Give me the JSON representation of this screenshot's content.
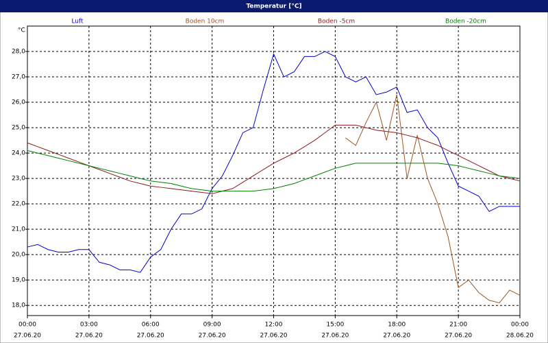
{
  "chart_data": {
    "type": "line",
    "title": "Temperatur [°C]",
    "y_label": "°C",
    "x": [
      0,
      0.5,
      1,
      1.5,
      2,
      2.5,
      3,
      3.5,
      4,
      4.5,
      5,
      5.5,
      6,
      6.5,
      7,
      7.5,
      8,
      8.5,
      9,
      9.5,
      10,
      10.5,
      11,
      11.5,
      12,
      12.5,
      13,
      13.5,
      14,
      14.5,
      15,
      15.5,
      16,
      16.5,
      17,
      17.5,
      18,
      18.5,
      19,
      19.5,
      20,
      20.5,
      21,
      21.5,
      22,
      22.5,
      23,
      23.5,
      24
    ],
    "series": [
      {
        "name": "Luft",
        "color": "#0000cc",
        "values": [
          20.3,
          20.4,
          20.2,
          20.1,
          20.1,
          20.2,
          20.2,
          19.7,
          19.6,
          19.4,
          19.4,
          19.3,
          19.9,
          20.2,
          21.0,
          21.6,
          21.6,
          21.8,
          22.6,
          23.1,
          23.9,
          24.8,
          25.0,
          26.5,
          27.9,
          27.0,
          27.2,
          27.8,
          27.8,
          28.0,
          27.8,
          27.0,
          26.8,
          27.0,
          26.3,
          26.4,
          26.6,
          25.6,
          25.7,
          25.0,
          24.6,
          23.6,
          22.7,
          22.5,
          22.3,
          21.7,
          21.9,
          21.9,
          21.9
        ]
      },
      {
        "name": "Boden 10cm",
        "color": "#a0521e",
        "values": [
          null,
          null,
          null,
          null,
          null,
          null,
          null,
          null,
          null,
          null,
          null,
          null,
          null,
          null,
          null,
          null,
          null,
          null,
          null,
          null,
          null,
          null,
          null,
          null,
          null,
          null,
          null,
          null,
          null,
          null,
          null,
          24.6,
          24.3,
          25.2,
          26.0,
          24.5,
          26.3,
          23.0,
          24.7,
          23.0,
          22.0,
          20.7,
          18.7,
          19.0,
          18.5,
          18.2,
          18.1,
          18.6,
          18.4
        ]
      },
      {
        "name": "Boden -5cm",
        "color": "#8b1a1a",
        "values": [
          24.4,
          24.25,
          24.1,
          23.95,
          23.8,
          23.65,
          23.5,
          23.35,
          23.2,
          23.05,
          22.9,
          22.8,
          22.7,
          22.65,
          22.6,
          22.55,
          22.5,
          22.45,
          22.4,
          22.5,
          22.6,
          22.85,
          23.1,
          23.35,
          23.6,
          23.8,
          24.0,
          24.25,
          24.5,
          24.8,
          25.1,
          25.1,
          25.1,
          25.0,
          24.9,
          24.85,
          24.8,
          24.7,
          24.6,
          24.45,
          24.3,
          24.1,
          23.9,
          23.7,
          23.5,
          23.3,
          23.1,
          23.0,
          22.9
        ]
      },
      {
        "name": "Boden -20cm",
        "color": "#008000",
        "values": [
          24.1,
          24.0,
          23.9,
          23.8,
          23.7,
          23.6,
          23.5,
          23.4,
          23.3,
          23.2,
          23.1,
          23.0,
          22.9,
          22.85,
          22.8,
          22.7,
          22.6,
          22.55,
          22.5,
          22.5,
          22.5,
          22.5,
          22.5,
          22.55,
          22.6,
          22.7,
          22.8,
          22.95,
          23.1,
          23.25,
          23.4,
          23.5,
          23.6,
          23.6,
          23.6,
          23.6,
          23.6,
          23.6,
          23.6,
          23.6,
          23.6,
          23.55,
          23.5,
          23.4,
          23.3,
          23.2,
          23.1,
          23.05,
          23.0
        ]
      }
    ],
    "xlim": [
      0,
      24
    ],
    "ylim": [
      17.6,
      29.0
    ],
    "xticks": [
      {
        "value": 0,
        "label": "00:00"
      },
      {
        "value": 3,
        "label": "03:00"
      },
      {
        "value": 6,
        "label": "06:00"
      },
      {
        "value": 9,
        "label": "09:00"
      },
      {
        "value": 12,
        "label": "12:00"
      },
      {
        "value": 15,
        "label": "15:00"
      },
      {
        "value": 18,
        "label": "18:00"
      },
      {
        "value": 21,
        "label": "21:00"
      },
      {
        "value": 24,
        "label": "00:00"
      }
    ],
    "xtick_dates": [
      "27.06.20",
      "27.06.20",
      "27.06.20",
      "27.06.20",
      "27.06.20",
      "27.06.20",
      "27.06.20",
      "27.06.20",
      "28.06.20"
    ],
    "yticks": [
      {
        "value": 18,
        "label": "18,0"
      },
      {
        "value": 19,
        "label": "19,0"
      },
      {
        "value": 20,
        "label": "20,0"
      },
      {
        "value": 21,
        "label": "21,0"
      },
      {
        "value": 22,
        "label": "22,0"
      },
      {
        "value": 23,
        "label": "23,0"
      },
      {
        "value": 24,
        "label": "24,0"
      },
      {
        "value": 25,
        "label": "25,0"
      },
      {
        "value": 26,
        "label": "26,0"
      },
      {
        "value": 27,
        "label": "27,0"
      },
      {
        "value": 28,
        "label": "28,0"
      }
    ],
    "grid": true
  }
}
